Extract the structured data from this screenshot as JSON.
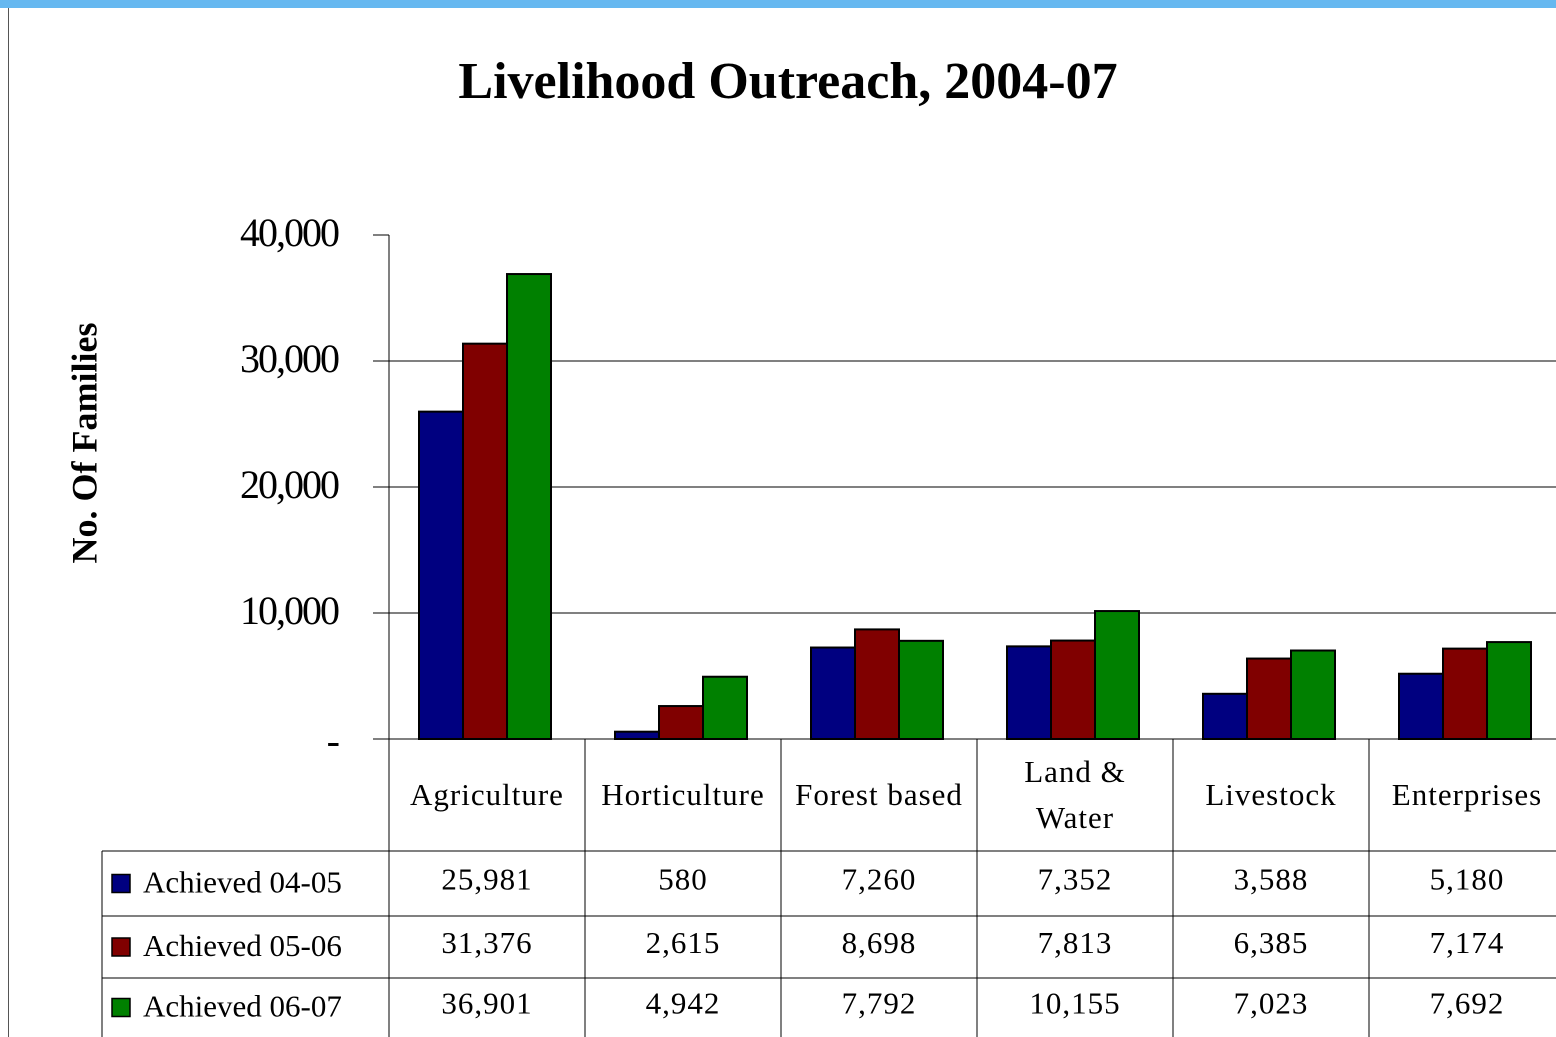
{
  "chart_data": {
    "type": "bar",
    "title": "Livelihood Outreach, 2004-07",
    "y_label": "No. Of Families",
    "categories": [
      "Agriculture",
      "Horticulture",
      "Forest based",
      "Land &\nWater",
      "Livestock",
      "Enterprises"
    ],
    "series": [
      {
        "name": "Achieved 04-05",
        "color": "#000080",
        "values": [
          25981,
          580,
          7260,
          7352,
          3588,
          5180
        ],
        "value_labels": [
          "25,981",
          "580",
          "7,260",
          "7,352",
          "3,588",
          "5,180"
        ]
      },
      {
        "name": "Achieved 05-06",
        "color": "#800000",
        "values": [
          31376,
          2615,
          8698,
          7813,
          6385,
          7174
        ],
        "value_labels": [
          "31,376",
          "2,615",
          "8,698",
          "7,813",
          "6,385",
          "7,174"
        ]
      },
      {
        "name": "Achieved 06-07",
        "color": "#008000",
        "values": [
          36901,
          4942,
          7792,
          10155,
          7023,
          7692
        ],
        "value_labels": [
          "36,901",
          "4,942",
          "7,792",
          "10,155",
          "7,023",
          "7,692"
        ]
      }
    ],
    "ylim": [
      0,
      40000
    ],
    "yticks": [
      {
        "value": 0,
        "label": "-"
      },
      {
        "value": 10000,
        "label": "10,000"
      },
      {
        "value": 20000,
        "label": "20,000"
      },
      {
        "value": 30000,
        "label": "30,000"
      },
      {
        "value": 40000,
        "label": "40,000"
      }
    ],
    "grid": true
  }
}
